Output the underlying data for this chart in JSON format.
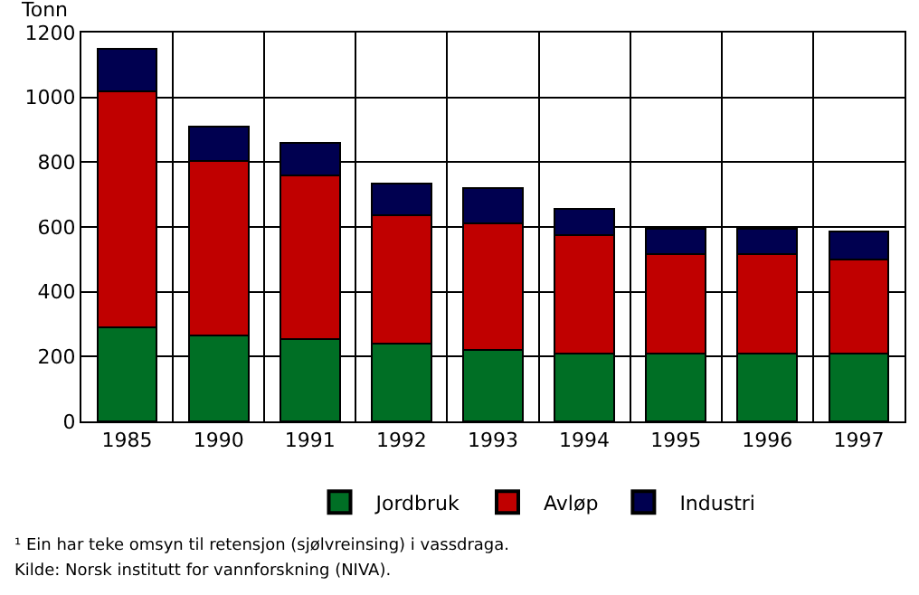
{
  "chart_data": {
    "type": "bar",
    "stacked": true,
    "ylabel": "Tonn",
    "categories": [
      "1985",
      "1990",
      "1991",
      "1992",
      "1993",
      "1994",
      "1995",
      "1996",
      "1997"
    ],
    "series": [
      {
        "name": "Jordbruk",
        "color": "#006f25",
        "values": [
          290,
          265,
          255,
          240,
          220,
          210,
          210,
          210,
          210
        ]
      },
      {
        "name": "Avløp",
        "color": "#c00000",
        "values": [
          730,
          540,
          505,
          395,
          390,
          365,
          305,
          305,
          290
        ]
      },
      {
        "name": "Industri",
        "color": "#000050",
        "values": [
          130,
          105,
          100,
          100,
          110,
          80,
          80,
          80,
          85
        ]
      }
    ],
    "ylim": [
      0,
      1200
    ],
    "yticks": [
      0,
      200,
      400,
      600,
      800,
      1000,
      1200
    ],
    "grid": true,
    "legend": "bottom",
    "annotations": [
      "¹ Ein har teke omsyn til retensjon (sjølvreinsing) i vassdraga.",
      "Kilde: Norsk institutt for vannforskning (NIVA)."
    ]
  }
}
